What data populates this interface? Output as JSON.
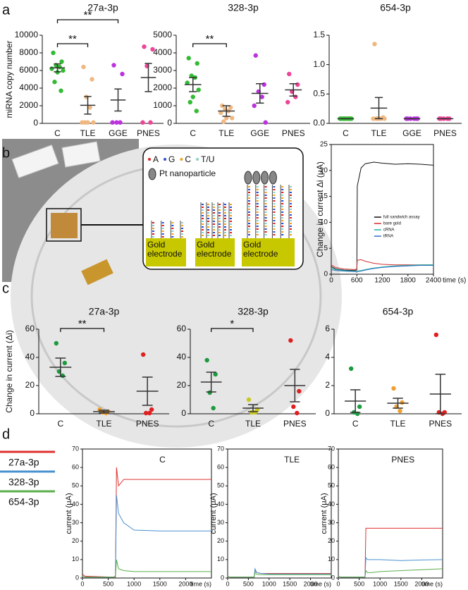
{
  "panel_labels": [
    "a",
    "b",
    "c",
    "d"
  ],
  "diagram": {
    "bases": [
      {
        "label": "A",
        "color": "#e02020"
      },
      {
        "label": "G",
        "color": "#3050d0"
      },
      {
        "label": "C",
        "color": "#f0a020"
      },
      {
        "label": "T/U",
        "color": "#8ccfc4"
      }
    ],
    "particle_label": "Pt nanoparticle",
    "electrodes": [
      "Gold electrode",
      "Gold electrode",
      "Gold electrode"
    ]
  },
  "chart_data": [
    {
      "type": "strip",
      "title": "27a-3p",
      "ylabel": "miRNA copy number",
      "categories": [
        "C",
        "TLE",
        "GGE",
        "PNES"
      ],
      "colors": [
        "#33bb33",
        "#f0b880",
        "#bb33dd",
        "#ee4499"
      ],
      "points": [
        [
          8000,
          7000,
          6600,
          6400,
          6200,
          6000,
          5800,
          4700,
          3700
        ],
        [
          6400,
          5000,
          3000,
          1800,
          100,
          100,
          100,
          100
        ],
        [
          6600,
          5600,
          100,
          100,
          100
        ],
        [
          8700,
          8400,
          6500,
          100,
          100
        ]
      ],
      "means": [
        6300,
        2050,
        2650,
        5200
      ],
      "errors": [
        450,
        1000,
        1250,
        1600
      ],
      "ylim": [
        0,
        10000
      ],
      "yticks": [
        0,
        2000,
        4000,
        6000,
        8000,
        10000
      ],
      "brackets": [
        {
          "from": "C",
          "to": "TLE",
          "label": "**"
        },
        {
          "from": "C",
          "to": "GGE",
          "label": "**"
        }
      ]
    },
    {
      "type": "strip",
      "title": "328-3p",
      "categories": [
        "C",
        "TLE",
        "GGE",
        "PNES"
      ],
      "colors": [
        "#33bb33",
        "#f0b880",
        "#bb33dd",
        "#ee4499"
      ],
      "points": [
        [
          3700,
          3400,
          2700,
          2600,
          2300,
          1900,
          1500,
          1200,
          700
        ],
        [
          1000,
          900,
          800,
          700,
          600,
          300,
          300,
          100
        ],
        [
          3850,
          2200,
          1800,
          1500,
          1000,
          50
        ],
        [
          2800,
          2200,
          1800,
          1500,
          1200
        ]
      ],
      "means": [
        2200,
        700,
        1700,
        1900
      ],
      "errors": [
        400,
        300,
        550,
        350
      ],
      "ylim": [
        0,
        5000
      ],
      "yticks": [
        0,
        1000,
        2000,
        3000,
        4000,
        5000
      ],
      "brackets": [
        {
          "from": "C",
          "to": "TLE",
          "label": "**"
        }
      ]
    },
    {
      "type": "strip",
      "title": "654-3p",
      "categories": [
        "C",
        "TLE",
        "GGE",
        "PNES"
      ],
      "colors": [
        "#33bb33",
        "#f0b880",
        "#bb33dd",
        "#ee4499"
      ],
      "points": [
        [
          0.08,
          0.08,
          0.08,
          0.08,
          0.08,
          0.08,
          0.08,
          0.08,
          0.08
        ],
        [
          1.35,
          0.1,
          0.08,
          0.08,
          0.08,
          0.08,
          0.08,
          0.08
        ],
        [
          0.08,
          0.08,
          0.08,
          0.08,
          0.08,
          0.08
        ],
        [
          0.08,
          0.08,
          0.08,
          0.08,
          0.08
        ]
      ],
      "means": [
        0.08,
        0.26,
        0.08,
        0.08
      ],
      "errors": [
        0,
        0.18,
        0,
        0
      ],
      "ylim": [
        0,
        1.5
      ],
      "yticks": [
        {
          "value": 0,
          "label": "0.0"
        },
        0.5,
        {
          "value": 1,
          "label": "1.0"
        },
        1.5
      ]
    },
    {
      "type": "line",
      "ylabel": "Change in current Δi (μA)",
      "xlabel": "time (s)",
      "x": [
        0,
        100,
        300,
        550,
        600,
        610,
        700,
        800,
        1000,
        1200,
        1500,
        1800,
        2100,
        2400
      ],
      "series": [
        {
          "name": "full sandwich assay",
          "color": "#111111",
          "values": [
            1.5,
            1,
            0.8,
            0.7,
            0.8,
            17,
            20.5,
            21.3,
            21.6,
            21.4,
            21.2,
            21.3,
            21.2,
            21
          ]
        },
        {
          "name": "bare gold",
          "color": "#d03030",
          "values": [
            1.8,
            1.3,
            1,
            0.9,
            1,
            2.7,
            2.8,
            2.5,
            2.1,
            1.9,
            1.8,
            1.8,
            1.8,
            1.8
          ]
        },
        {
          "name": "cRNA",
          "color": "#20b0a0",
          "values": [
            1.2,
            0.9,
            0.7,
            0.6,
            0.5,
            0.6,
            0.7,
            0.9,
            1.2,
            1.4,
            1.6,
            1.7,
            1.8,
            1.8
          ]
        },
        {
          "name": "tRNA",
          "color": "#3070c0",
          "values": [
            0.9,
            0.7,
            0.6,
            0.5,
            0.4,
            0.5,
            0.6,
            0.8,
            1.1,
            1.3,
            1.5,
            1.6,
            1.7,
            1.7
          ]
        }
      ],
      "xlim": [
        0,
        2400
      ],
      "xticks": [
        0,
        600,
        1200,
        1800,
        2400
      ],
      "ylim": [
        0,
        25
      ],
      "yticks": [
        0,
        5,
        10,
        15,
        20,
        25
      ],
      "legend": "right"
    },
    {
      "type": "strip",
      "title": "27a-3p",
      "ylabel": "Change in current (Δi)",
      "categories": [
        "C",
        "TLE",
        "PNES"
      ],
      "colors": [
        "#1e9a3e",
        "#f0a030",
        "#e02020"
      ],
      "points": [
        [
          50,
          36,
          30,
          27
        ],
        [
          3,
          1.5,
          1,
          0.5
        ],
        [
          42,
          3,
          0.5,
          0.5
        ]
      ],
      "means": [
        33,
        1.5,
        16
      ],
      "errors": [
        6.5,
        1,
        10
      ],
      "ylim": [
        0,
        60
      ],
      "yticks": [
        0,
        20,
        40,
        60
      ],
      "brackets": [
        {
          "from": "C",
          "to": "TLE",
          "label": "**"
        }
      ]
    },
    {
      "type": "strip",
      "title": "328-3p",
      "categories": [
        "C",
        "TLE",
        "PNES"
      ],
      "colors": [
        "#1e9a3e",
        "#c8c820",
        "#e02020"
      ],
      "points": [
        [
          38,
          28,
          15,
          4
        ],
        [
          10,
          3,
          1,
          1
        ],
        [
          52,
          16,
          5,
          0.5
        ]
      ],
      "means": [
        22.5,
        4,
        20
      ],
      "errors": [
        7,
        2.5,
        11.5
      ],
      "ylim": [
        0,
        60
      ],
      "yticks": [
        0,
        20,
        40,
        60
      ],
      "brackets": [
        {
          "from": "C",
          "to": "TLE",
          "label": "*"
        }
      ]
    },
    {
      "type": "strip",
      "title": "654-3p",
      "categories": [
        "C",
        "TLE",
        "PNES"
      ],
      "colors": [
        "#1e9a3e",
        "#f0a030",
        "#e02020"
      ],
      "points": [
        [
          3.2,
          0.5,
          0.1,
          0
        ],
        [
          1.8,
          0.8,
          0.5,
          0.2
        ],
        [
          5.6,
          0.1,
          0.1,
          0
        ]
      ],
      "means": [
        0.9,
        0.75,
        1.4
      ],
      "errors": [
        0.8,
        0.35,
        1.4
      ],
      "ylim": [
        0,
        6
      ],
      "yticks": [
        0,
        2,
        4,
        6
      ]
    },
    {
      "type": "line",
      "title": "C",
      "ylabel": "current (μA)",
      "xlabel": "time (s)",
      "x": [
        0,
        50,
        600,
        640,
        660,
        700,
        800,
        1000,
        1500,
        2000,
        2500
      ],
      "series": [
        {
          "name": "27a-3p",
          "color": "#e03030",
          "values": [
            2,
            1,
            0.5,
            1,
            60,
            50,
            53.5,
            53.5,
            53.5,
            53.5,
            53.5
          ]
        },
        {
          "name": "328-3p",
          "color": "#4a90d0",
          "values": [
            1,
            0.5,
            0.5,
            0.5,
            45,
            35,
            30,
            26,
            25.5,
            25.5,
            25.5
          ]
        },
        {
          "name": "654-3p",
          "color": "#5aae4a",
          "values": [
            1,
            0.5,
            0.5,
            0.5,
            10,
            5,
            4,
            3.5,
            3.5,
            3.5,
            3.5
          ]
        }
      ],
      "xlim": [
        0,
        2500
      ],
      "xticks": [
        0,
        500,
        1000,
        1500,
        2000
      ],
      "ylim": [
        0,
        70
      ],
      "yticks": [
        0,
        10,
        20,
        30,
        40,
        50,
        60,
        70
      ],
      "legend": "left"
    },
    {
      "type": "line",
      "title": "TLE",
      "ylabel": "current (μA)",
      "xlabel": "time (s)",
      "x": [
        0,
        50,
        600,
        640,
        660,
        700,
        800,
        1000,
        1500,
        2000,
        2500
      ],
      "series": [
        {
          "color": "#e03030",
          "values": [
            1,
            0.5,
            0.5,
            0.5,
            4,
            3,
            2.5,
            2.5,
            2.5,
            2.5,
            2.5
          ]
        },
        {
          "color": "#4a90d0",
          "values": [
            1,
            0.5,
            0.5,
            0.5,
            5,
            3,
            2.5,
            2.2,
            2.2,
            2.2,
            2.2
          ]
        },
        {
          "color": "#5aae4a",
          "values": [
            1,
            0.5,
            0.5,
            0.5,
            3,
            2,
            1.8,
            1.8,
            1.8,
            1.8,
            1.8
          ]
        }
      ],
      "xlim": [
        0,
        2500
      ],
      "xticks": [
        0,
        500,
        1000,
        1500,
        2000
      ],
      "ylim": [
        0,
        70
      ],
      "yticks": [
        0,
        10,
        20,
        30,
        40,
        50,
        60,
        70
      ]
    },
    {
      "type": "line",
      "title": "PNES",
      "ylabel": "current (μA)",
      "xlabel": "time (s)",
      "x": [
        0,
        50,
        600,
        640,
        660,
        700,
        800,
        1000,
        1500,
        2000,
        2500
      ],
      "series": [
        {
          "color": "#e03030",
          "values": [
            1,
            0.5,
            0.5,
            0.5,
            27,
            27,
            27,
            27,
            27,
            27,
            27
          ]
        },
        {
          "color": "#4a90d0",
          "values": [
            1,
            0.5,
            0.5,
            0.5,
            11,
            10,
            10,
            10,
            9.5,
            9.8,
            10
          ]
        },
        {
          "color": "#5aae4a",
          "values": [
            1,
            0.5,
            0.5,
            0.5,
            4,
            3,
            3,
            3.5,
            4,
            4.5,
            5
          ]
        }
      ],
      "xlim": [
        0,
        2500
      ],
      "xticks": [
        0,
        500,
        1000,
        1500,
        2000
      ],
      "ylim": [
        0,
        70
      ],
      "yticks": [
        0,
        10,
        20,
        30,
        40,
        50,
        60,
        70
      ]
    }
  ]
}
